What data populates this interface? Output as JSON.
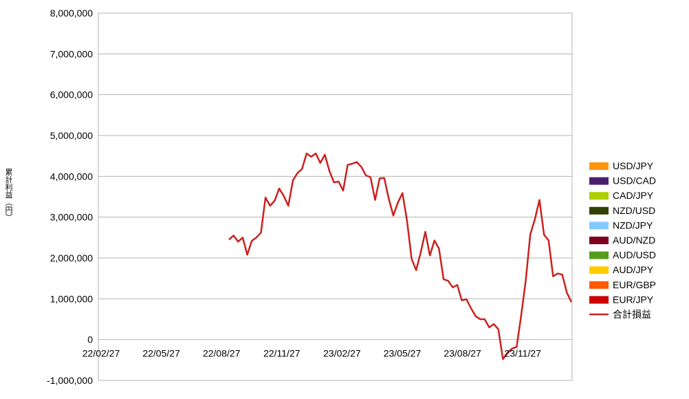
{
  "chart_data": {
    "type": "bar",
    "stacked": true,
    "title": "",
    "ylabel": "累計利益（円）",
    "xlabel": "",
    "ylim": [
      -1000000,
      8000000
    ],
    "yticks": [
      -1000000,
      0,
      1000000,
      2000000,
      3000000,
      4000000,
      5000000,
      6000000,
      7000000,
      8000000
    ],
    "ytick_labels": [
      "-1,000,000",
      "0",
      "1,000,000",
      "2,000,000",
      "3,000,000",
      "4,000,000",
      "5,000,000",
      "6,000,000",
      "7,000,000",
      "8,000,000"
    ],
    "x_tick_labels": [
      "22/02/27",
      "22/05/27",
      "22/08/27",
      "22/11/27",
      "23/02/27",
      "23/05/27",
      "23/08/27",
      "23/11/27"
    ],
    "grid": true,
    "legend_position": "right",
    "series": [
      {
        "name": "EUR/JPY",
        "color": "#cc0000",
        "values": [
          0,
          0,
          0,
          0,
          0,
          0,
          0,
          0,
          0,
          0,
          0,
          0,
          0,
          0,
          0,
          0,
          0,
          0,
          0,
          0,
          0,
          0,
          0,
          0,
          0,
          0,
          0,
          0,
          0,
          0,
          0,
          0,
          0,
          0,
          0,
          0,
          0,
          0,
          0,
          0,
          0,
          0,
          0,
          0,
          0,
          0,
          0,
          0,
          0,
          0,
          0,
          0,
          0,
          0,
          0,
          0,
          0,
          0,
          0,
          0,
          0,
          0,
          0,
          0,
          0,
          0,
          0,
          0,
          0,
          0,
          0,
          0,
          0,
          0,
          0,
          0,
          0,
          0,
          0,
          0,
          0,
          0,
          0,
          0,
          0,
          0,
          0,
          0,
          0,
          0,
          0,
          0,
          0,
          0,
          0,
          0,
          0,
          0,
          0,
          0
        ]
      },
      {
        "name": "EUR/GBP",
        "color": "#ff5a00",
        "values": [
          0,
          0,
          0,
          0,
          0,
          0,
          0,
          0,
          0,
          0,
          0,
          0,
          0,
          0,
          0,
          0,
          0,
          0,
          0,
          0,
          0,
          0,
          0,
          0,
          0,
          0,
          0,
          0,
          0,
          0,
          0,
          0,
          0,
          0,
          0,
          0,
          0,
          0,
          0,
          0,
          0,
          0,
          0,
          0,
          0,
          0,
          0,
          0,
          0,
          0,
          0,
          0,
          0,
          0,
          0,
          0,
          0,
          0,
          0,
          0,
          0,
          0,
          0,
          0,
          0,
          0,
          0,
          0,
          0,
          0,
          0,
          0,
          0,
          0,
          0,
          0,
          0,
          0,
          0,
          0,
          0,
          0,
          0,
          0,
          0,
          0,
          0,
          0,
          0,
          0,
          0,
          0,
          0,
          0,
          0,
          0,
          0,
          0,
          0,
          0
        ]
      },
      {
        "name": "AUD/JPY",
        "color": "#ffcc00",
        "values": [
          0,
          0,
          0,
          0,
          0,
          0,
          0,
          0,
          0,
          0,
          0,
          0,
          0,
          0,
          0,
          0,
          0,
          0,
          0,
          0,
          0,
          0,
          0,
          0,
          0,
          0,
          0,
          0,
          0,
          0,
          0,
          0,
          0,
          0,
          0,
          0,
          0,
          0,
          0,
          0,
          0,
          0,
          0,
          0,
          0,
          0,
          0,
          0,
          0,
          0,
          0,
          0,
          0,
          0,
          0,
          0,
          0,
          0,
          0,
          0,
          0,
          0,
          0,
          0,
          0,
          0,
          0,
          0,
          0,
          0,
          0,
          0,
          0,
          0,
          0,
          0,
          0,
          0,
          0,
          0,
          0,
          0,
          0,
          0,
          0,
          0,
          0,
          0,
          0,
          0,
          0,
          0,
          0,
          0,
          0,
          0,
          0,
          0,
          0,
          0
        ]
      },
      {
        "name": "AUD/USD",
        "color": "#579d1c",
        "values": [
          0,
          0,
          0,
          0,
          0,
          0,
          0,
          0,
          0,
          0,
          0,
          0,
          0,
          0,
          0,
          0,
          0,
          0,
          0,
          0,
          0,
          0,
          0,
          0,
          0,
          0,
          0,
          0,
          0,
          0,
          0,
          0,
          0,
          0,
          0,
          0,
          0,
          0,
          0,
          0,
          0,
          0,
          0,
          0,
          0,
          0,
          0,
          0,
          0,
          0,
          0,
          0,
          0,
          0,
          0,
          0,
          0,
          0,
          0,
          0,
          0,
          0,
          0,
          0,
          0,
          0,
          0,
          0,
          0,
          0,
          0,
          0,
          0,
          0,
          0,
          0,
          0,
          0,
          0,
          0,
          0,
          0,
          0,
          0,
          0,
          0,
          0,
          0,
          0,
          0,
          0,
          0,
          0,
          0,
          0,
          0,
          0,
          0,
          0,
          0
        ]
      },
      {
        "name": "AUD/NZD",
        "color": "#7e0021",
        "values": [
          0,
          0,
          0,
          0,
          0,
          0,
          0,
          0,
          0,
          0,
          0,
          0,
          0,
          0,
          0,
          0,
          0,
          0,
          0,
          0,
          0,
          0,
          0,
          0,
          0,
          0,
          0,
          0,
          0,
          0,
          0,
          0,
          0,
          0,
          0,
          0,
          0,
          0,
          0,
          0,
          0,
          0,
          0,
          0,
          0,
          0,
          0,
          0,
          0,
          0,
          0,
          0,
          0,
          0,
          0,
          0,
          0,
          0,
          0,
          0,
          0,
          0,
          0,
          0,
          0,
          0,
          0,
          0,
          0,
          0,
          0,
          0,
          0,
          0,
          0,
          0,
          0,
          0,
          0,
          0,
          0,
          0,
          0,
          0,
          0,
          0,
          0,
          0,
          0,
          0,
          0,
          0,
          0,
          0,
          0,
          0,
          0,
          0,
          0,
          0
        ]
      },
      {
        "name": "NZD/JPY",
        "color": "#83caff",
        "values": [
          0,
          0,
          0,
          0,
          0,
          0,
          0,
          0,
          0,
          0,
          0,
          0,
          0,
          0,
          0,
          0,
          0,
          0,
          0,
          0,
          0,
          0,
          0,
          0,
          0,
          0,
          0,
          0,
          0,
          0,
          0,
          0,
          0,
          0,
          0,
          0,
          0,
          0,
          0,
          0,
          0,
          0,
          0,
          0,
          0,
          0,
          0,
          0,
          0,
          0,
          0,
          0,
          0,
          0,
          0,
          0,
          0,
          0,
          0,
          0,
          0,
          0,
          0,
          0,
          0,
          0,
          0,
          0,
          0,
          0,
          0,
          0,
          0,
          0,
          0,
          0,
          0,
          0,
          0,
          0,
          0,
          0,
          0,
          0,
          0,
          0,
          0,
          0,
          0,
          0,
          0,
          0,
          0,
          0,
          0,
          0,
          0,
          0,
          0,
          0
        ]
      },
      {
        "name": "NZD/USD",
        "color": "#314004",
        "values": [
          0,
          0,
          0,
          0,
          0,
          0,
          0,
          0,
          0,
          0,
          0,
          0,
          0,
          0,
          0,
          0,
          0,
          0,
          0,
          0,
          0,
          0,
          0,
          0,
          0,
          0,
          0,
          0,
          0,
          0,
          0,
          0,
          0,
          0,
          0,
          0,
          0,
          0,
          0,
          0,
          0,
          0,
          0,
          0,
          0,
          0,
          0,
          0,
          0,
          0,
          0,
          0,
          0,
          0,
          0,
          0,
          0,
          0,
          0,
          0,
          0,
          0,
          0,
          0,
          0,
          0,
          0,
          0,
          0,
          0,
          0,
          0,
          0,
          0,
          0,
          0,
          0,
          0,
          0,
          0,
          0,
          0,
          0,
          0,
          0,
          0,
          0,
          0,
          0,
          0,
          0,
          0,
          0,
          0,
          0,
          0,
          0,
          0,
          0,
          0
        ]
      },
      {
        "name": "CAD/JPY",
        "color": "#aecf00",
        "values": [
          0,
          0,
          0,
          0,
          0,
          0,
          0,
          0,
          0,
          0,
          0,
          0,
          0,
          0,
          0,
          0,
          0,
          0,
          0,
          0,
          0,
          0,
          0,
          0,
          0,
          0,
          0,
          0,
          0,
          0,
          0,
          0,
          0,
          0,
          0,
          0,
          0,
          0,
          0,
          0,
          0,
          0,
          0,
          0,
          0,
          0,
          0,
          0,
          0,
          0,
          0,
          0,
          0,
          0,
          0,
          0,
          0,
          0,
          0,
          0,
          0,
          0,
          0,
          0,
          0,
          0,
          0,
          0,
          0,
          0,
          0,
          0,
          0,
          0,
          0,
          0,
          0,
          0,
          0,
          0,
          0,
          0,
          0,
          0,
          0,
          0,
          0,
          0,
          0,
          0,
          0,
          0,
          0,
          0,
          0,
          0,
          0,
          0,
          0,
          0
        ]
      },
      {
        "name": "USD/CAD",
        "color": "#4b1f6f",
        "values": [
          0,
          0,
          0,
          0,
          0,
          0,
          0,
          0,
          0,
          0,
          0,
          0,
          0,
          0,
          0,
          0,
          0,
          0,
          0,
          0,
          0,
          0,
          0,
          0,
          0,
          0,
          0,
          0,
          0,
          0,
          0,
          0,
          0,
          0,
          0,
          0,
          0,
          0,
          0,
          0,
          0,
          0,
          0,
          0,
          0,
          0,
          0,
          0,
          0,
          0,
          0,
          0,
          0,
          0,
          0,
          0,
          0,
          0,
          0,
          0,
          0,
          0,
          0,
          0,
          0,
          0,
          0,
          0,
          0,
          0,
          0,
          0,
          0,
          0,
          0,
          0,
          0,
          0,
          0,
          0,
          0,
          0,
          0,
          0,
          0,
          0,
          0,
          0,
          0,
          0,
          0,
          0,
          0,
          0,
          0,
          0,
          0,
          0,
          0,
          0
        ]
      },
      {
        "name": "USD/JPY",
        "color": "#ff950e",
        "values": [
          0,
          0,
          0,
          0,
          0,
          0,
          0,
          0,
          0,
          0,
          0,
          0,
          0,
          0,
          0,
          0,
          0,
          0,
          0,
          0,
          0,
          0,
          0,
          0,
          0,
          0,
          0,
          0,
          0,
          0,
          0,
          0,
          0,
          0,
          0,
          0,
          0,
          0,
          0,
          0,
          0,
          0,
          0,
          0,
          0,
          0,
          0,
          0,
          0,
          0,
          0,
          0,
          0,
          0,
          0,
          0,
          0,
          0,
          0,
          0,
          0,
          0,
          0,
          0,
          0,
          0,
          0,
          0,
          0,
          0,
          0,
          0,
          0,
          0,
          0,
          0,
          0,
          0,
          0,
          0,
          0,
          0,
          0,
          0,
          0,
          0,
          0,
          0,
          0,
          0,
          0,
          0,
          0,
          0,
          0,
          0,
          0,
          0,
          0,
          0
        ]
      }
    ],
    "line_series": {
      "name": "合計損益",
      "color": "#c9211e",
      "values": [
        2450000,
        2550000,
        2400000,
        2500000,
        2080000,
        2420000,
        2500000,
        2620000,
        3480000,
        3280000,
        3400000,
        3700000,
        3520000,
        3280000,
        3900000,
        4080000,
        4180000,
        4560000,
        4480000,
        4560000,
        4330000,
        4530000,
        4130000,
        3850000,
        3870000,
        3650000,
        4280000,
        4310000,
        4350000,
        4230000,
        4020000,
        3980000,
        3420000,
        3950000,
        3960000,
        3450000,
        3040000,
        3360000,
        3590000,
        2900000,
        1980000,
        1700000,
        2140000,
        2640000,
        2060000,
        2430000,
        2230000,
        1480000,
        1440000,
        1280000,
        1340000,
        960000,
        990000,
        770000,
        580000,
        500000,
        500000,
        300000,
        380000,
        250000,
        -480000,
        -320000,
        -220000,
        -180000,
        600000,
        1450000,
        2580000,
        2950000,
        3420000,
        2570000,
        2430000,
        1550000,
        1620000,
        1590000,
        1150000,
        920000
      ]
    }
  }
}
